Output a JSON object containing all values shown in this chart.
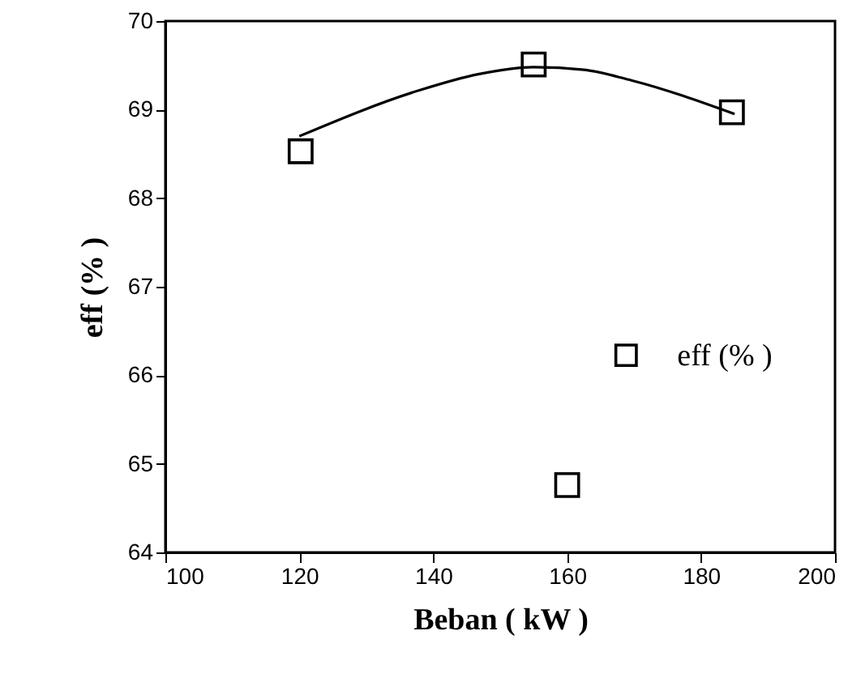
{
  "chart_data": {
    "type": "scatter",
    "xlabel": "Beban ( kW )",
    "ylabel": "eff (% )",
    "xlim": [
      100,
      200
    ],
    "xticks": [
      100,
      120,
      140,
      160,
      180,
      200
    ],
    "ylim": [
      64,
      70
    ],
    "yticks": [
      64,
      65,
      66,
      67,
      68,
      69,
      70
    ],
    "grid": false,
    "legend": "right",
    "marker": "square",
    "series": [
      {
        "name": "eff (% )",
        "color": "#000000",
        "x": [
          120.2,
          155,
          160,
          184.6
        ],
        "values": [
          68.53,
          69.51,
          64.76,
          68.97
        ]
      },
      {
        "type": "line",
        "color": "#000000",
        "marker": "none",
        "line_style": "solid",
        "x": [
          120,
          138,
          146.7,
          155,
          162.5,
          169.6,
          185
        ],
        "values": [
          68.7,
          69.22,
          69.4,
          69.48,
          69.45,
          69.33,
          68.95
        ]
      }
    ]
  }
}
